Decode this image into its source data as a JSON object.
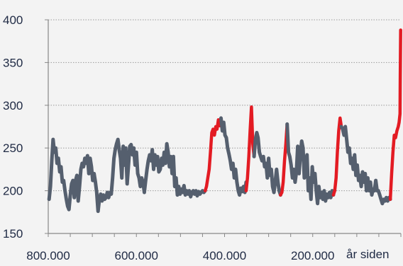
{
  "chart_data": {
    "type": "line",
    "title": "",
    "xlabel": "år siden",
    "ylabel": "",
    "x_reversed": true,
    "xlim": [
      800000,
      0
    ],
    "ylim": [
      150,
      400
    ],
    "grid": {
      "horizontal": true,
      "style": "dotted"
    },
    "x_tick_labels": [
      "800.000",
      "600.000",
      "400.000",
      "200.000"
    ],
    "x_ticks": [
      800000,
      600000,
      400000,
      200000
    ],
    "y_tick_labels": [
      "400",
      "350",
      "300",
      "250",
      "200",
      "150"
    ],
    "y_ticks": [
      400,
      350,
      300,
      250,
      200,
      150
    ],
    "colors": {
      "gray": "#555f6e",
      "red": "#e31b23",
      "axis": "#888888",
      "grid": "#9a9a9a",
      "text": "#1f2a44",
      "background": "#f3f3f3"
    },
    "series": [
      {
        "color": "gray",
        "points": [
          [
            798000,
            190
          ],
          [
            795000,
            205
          ],
          [
            792000,
            235
          ],
          [
            789000,
            260
          ],
          [
            786000,
            245
          ],
          [
            783000,
            250
          ],
          [
            780000,
            232
          ],
          [
            777000,
            238
          ],
          [
            774000,
            222
          ],
          [
            771000,
            228
          ],
          [
            768000,
            210
          ],
          [
            765000,
            212
          ],
          [
            762000,
            200
          ],
          [
            759000,
            190
          ],
          [
            756000,
            182
          ],
          [
            753000,
            178
          ],
          [
            750000,
            195
          ],
          [
            747000,
            208
          ],
          [
            744000,
            212
          ],
          [
            741000,
            192
          ],
          [
            738000,
            212
          ],
          [
            735000,
            218
          ],
          [
            732000,
            188
          ],
          [
            729000,
            205
          ],
          [
            726000,
            225
          ],
          [
            723000,
            232
          ],
          [
            720000,
            228
          ],
          [
            717000,
            238
          ],
          [
            714000,
            232
          ],
          [
            711000,
            241
          ],
          [
            708000,
            220
          ],
          [
            705000,
            238
          ],
          [
            702000,
            228
          ],
          [
            699000,
            212
          ],
          [
            696000,
            220
          ],
          [
            693000,
            210
          ],
          [
            690000,
            198
          ],
          [
            687000,
            176
          ],
          [
            684000,
            190
          ],
          [
            681000,
            196
          ],
          [
            678000,
            188
          ],
          [
            675000,
            195
          ],
          [
            672000,
            190
          ],
          [
            669000,
            192
          ],
          [
            666000,
            198
          ],
          [
            663000,
            192
          ],
          [
            660000,
            198
          ],
          [
            657000,
            196
          ],
          [
            654000,
            215
          ],
          [
            651000,
            238
          ],
          [
            648000,
            248
          ],
          [
            645000,
            255
          ],
          [
            642000,
            260
          ],
          [
            639000,
            248
          ],
          [
            636000,
            238
          ],
          [
            633000,
            215
          ],
          [
            630000,
            252
          ],
          [
            627000,
            230
          ],
          [
            624000,
            250
          ],
          [
            621000,
            208
          ],
          [
            618000,
            230
          ],
          [
            615000,
            252
          ],
          [
            612000,
            254
          ],
          [
            609000,
            242
          ],
          [
            606000,
            250
          ],
          [
            603000,
            230
          ],
          [
            600000,
            245
          ],
          [
            597000,
            220
          ],
          [
            594000,
            215
          ],
          [
            591000,
            205
          ],
          [
            588000,
            215
          ],
          [
            585000,
            210
          ],
          [
            582000,
            198
          ],
          [
            579000,
            212
          ],
          [
            576000,
            225
          ],
          [
            573000,
            235
          ],
          [
            570000,
            242
          ],
          [
            567000,
            235
          ],
          [
            564000,
            248
          ],
          [
            561000,
            225
          ],
          [
            558000,
            242
          ],
          [
            555000,
            230
          ],
          [
            552000,
            240
          ],
          [
            549000,
            222
          ],
          [
            546000,
            225
          ],
          [
            543000,
            238
          ],
          [
            540000,
            230
          ],
          [
            537000,
            245
          ],
          [
            534000,
            232
          ],
          [
            531000,
            255
          ],
          [
            528000,
            245
          ],
          [
            525000,
            228
          ],
          [
            522000,
            240
          ],
          [
            519000,
            220
          ],
          [
            516000,
            240
          ],
          [
            513000,
            205
          ],
          [
            510000,
            215
          ],
          [
            507000,
            195
          ],
          [
            504000,
            205
          ],
          [
            501000,
            196
          ],
          [
            498000,
            202
          ],
          [
            495000,
            198
          ],
          [
            492000,
            206
          ],
          [
            489000,
            195
          ],
          [
            486000,
            200
          ],
          [
            483000,
            196
          ],
          [
            480000,
            200
          ],
          [
            477000,
            193
          ],
          [
            474000,
            198
          ],
          [
            471000,
            200
          ],
          [
            468000,
            196
          ],
          [
            465000,
            200
          ],
          [
            462000,
            194
          ],
          [
            459000,
            199
          ],
          [
            456000,
            196
          ],
          [
            453000,
            198
          ],
          [
            450000,
            200
          ],
          [
            447000,
            198
          ],
          [
            444000,
            200
          ]
        ]
      },
      {
        "color": "red",
        "points": [
          [
            444000,
            200
          ],
          [
            441000,
            205
          ],
          [
            438000,
            215
          ],
          [
            435000,
            225
          ],
          [
            432000,
            245
          ],
          [
            429000,
            268
          ],
          [
            426000,
            272
          ],
          [
            423000,
            265
          ],
          [
            420000,
            275
          ],
          [
            417000,
            272
          ],
          [
            414000,
            283
          ],
          [
            411000,
            276
          ],
          [
            408000,
            285
          ]
        ]
      },
      {
        "color": "gray",
        "points": [
          [
            408000,
            285
          ],
          [
            405000,
            270
          ],
          [
            402000,
            280
          ],
          [
            399000,
            265
          ],
          [
            396000,
            262
          ],
          [
            393000,
            250
          ],
          [
            390000,
            243
          ],
          [
            387000,
            235
          ],
          [
            384000,
            225
          ],
          [
            381000,
            232
          ],
          [
            378000,
            215
          ],
          [
            375000,
            225
          ],
          [
            372000,
            210
          ],
          [
            369000,
            200
          ],
          [
            366000,
            195
          ],
          [
            363000,
            203
          ],
          [
            360000,
            199
          ],
          [
            357000,
            205
          ],
          [
            354000,
            198
          ],
          [
            351000,
            210
          ]
        ]
      },
      {
        "color": "red",
        "points": [
          [
            351000,
            200
          ],
          [
            348000,
            215
          ],
          [
            345000,
            240
          ],
          [
            342000,
            270
          ],
          [
            339000,
            298
          ],
          [
            336000,
            255
          ],
          [
            333000,
            240
          ]
        ]
      },
      {
        "color": "gray",
        "points": [
          [
            333000,
            240
          ],
          [
            330000,
            260
          ],
          [
            327000,
            268
          ],
          [
            324000,
            262
          ],
          [
            321000,
            245
          ],
          [
            318000,
            240
          ],
          [
            315000,
            235
          ],
          [
            312000,
            240
          ],
          [
            309000,
            228
          ],
          [
            306000,
            232
          ],
          [
            303000,
            215
          ],
          [
            300000,
            238
          ],
          [
            297000,
            218
          ],
          [
            294000,
            225
          ],
          [
            291000,
            205
          ],
          [
            288000,
            198
          ],
          [
            285000,
            210
          ],
          [
            282000,
            225
          ],
          [
            279000,
            210
          ],
          [
            276000,
            200
          ],
          [
            273000,
            195
          ]
        ]
      },
      {
        "color": "red",
        "points": [
          [
            273000,
            195
          ],
          [
            270000,
            198
          ],
          [
            267000,
            210
          ],
          [
            264000,
            235
          ],
          [
            261000,
            255
          ],
          [
            258000,
            278
          ]
        ]
      },
      {
        "color": "gray",
        "points": [
          [
            258000,
            278
          ],
          [
            255000,
            245
          ],
          [
            252000,
            240
          ],
          [
            249000,
            230
          ],
          [
            246000,
            215
          ],
          [
            243000,
            225
          ],
          [
            240000,
            210
          ],
          [
            237000,
            222
          ],
          [
            234000,
            252
          ],
          [
            231000,
            220
          ],
          [
            228000,
            242
          ],
          [
            225000,
            258
          ],
          [
            222000,
            250
          ],
          [
            219000,
            215
          ],
          [
            216000,
            230
          ],
          [
            213000,
            242
          ],
          [
            210000,
            200
          ],
          [
            207000,
            215
          ],
          [
            204000,
            190
          ],
          [
            201000,
            228
          ],
          [
            198000,
            210
          ],
          [
            195000,
            220
          ],
          [
            192000,
            200
          ],
          [
            189000,
            185
          ],
          [
            186000,
            205
          ],
          [
            183000,
            192
          ],
          [
            180000,
            198
          ],
          [
            177000,
            190
          ],
          [
            174000,
            200
          ],
          [
            171000,
            188
          ],
          [
            168000,
            196
          ],
          [
            165000,
            192
          ],
          [
            162000,
            198
          ],
          [
            159000,
            192
          ],
          [
            156000,
            200
          ],
          [
            153000,
            195
          ]
        ]
      },
      {
        "color": "red",
        "points": [
          [
            153000,
            195
          ],
          [
            150000,
            200
          ],
          [
            147000,
            215
          ],
          [
            144000,
            245
          ],
          [
            141000,
            270
          ],
          [
            138000,
            285
          ],
          [
            135000,
            275
          ]
        ]
      },
      {
        "color": "gray",
        "points": [
          [
            135000,
            275
          ],
          [
            132000,
            272
          ],
          [
            129000,
            265
          ],
          [
            126000,
            275
          ],
          [
            123000,
            260
          ],
          [
            120000,
            245
          ],
          [
            117000,
            250
          ],
          [
            114000,
            232
          ],
          [
            111000,
            238
          ],
          [
            108000,
            225
          ],
          [
            105000,
            242
          ],
          [
            102000,
            218
          ],
          [
            99000,
            230
          ],
          [
            96000,
            212
          ],
          [
            93000,
            218
          ],
          [
            90000,
            205
          ],
          [
            87000,
            222
          ],
          [
            84000,
            210
          ],
          [
            81000,
            220
          ],
          [
            78000,
            200
          ],
          [
            75000,
            215
          ],
          [
            72000,
            200
          ],
          [
            69000,
            210
          ],
          [
            66000,
            195
          ],
          [
            63000,
            202
          ],
          [
            60000,
            200
          ],
          [
            57000,
            212
          ],
          [
            54000,
            200
          ],
          [
            51000,
            200
          ],
          [
            48000,
            195
          ],
          [
            45000,
            190
          ],
          [
            42000,
            185
          ],
          [
            39000,
            190
          ],
          [
            36000,
            188
          ],
          [
            33000,
            192
          ],
          [
            30000,
            188
          ],
          [
            27000,
            192
          ],
          [
            24000,
            190
          ]
        ]
      },
      {
        "color": "red",
        "points": [
          [
            24000,
            190
          ],
          [
            21000,
            220
          ],
          [
            18000,
            245
          ],
          [
            15000,
            265
          ],
          [
            12000,
            262
          ],
          [
            9000,
            270
          ],
          [
            6000,
            275
          ],
          [
            4000,
            280
          ],
          [
            2000,
            290
          ],
          [
            1500,
            330
          ],
          [
            1000,
            360
          ],
          [
            500,
            388
          ]
        ]
      }
    ]
  }
}
